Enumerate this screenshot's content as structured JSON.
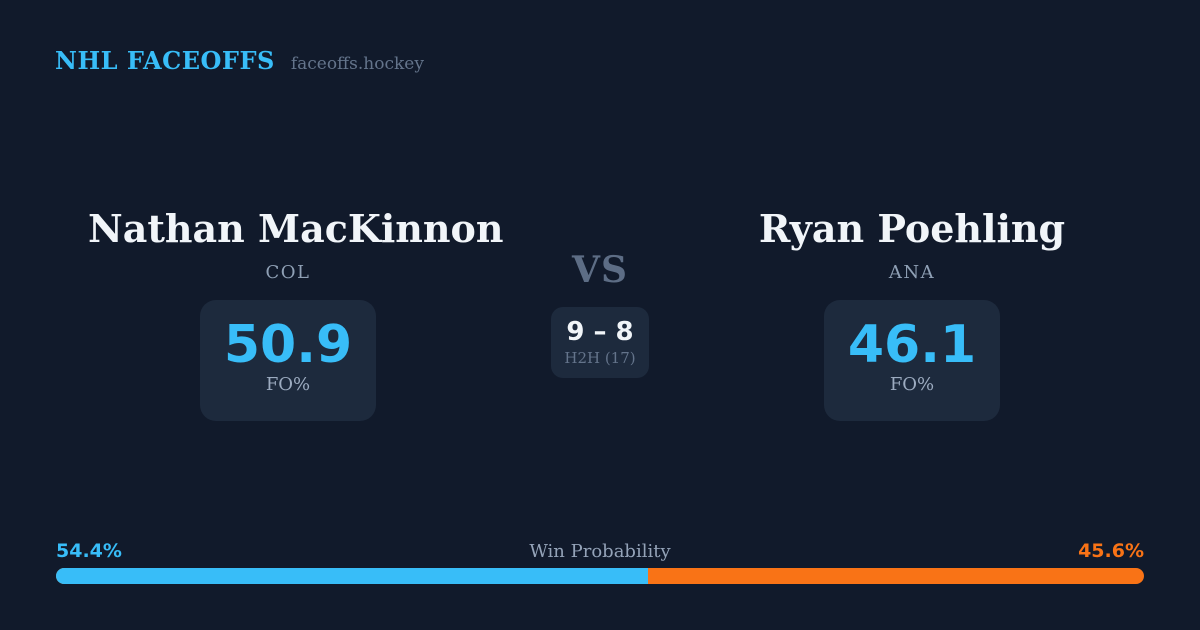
{
  "header": {
    "brand": "NHL FACEOFFS",
    "site": "faceoffs.hockey"
  },
  "matchup": {
    "vs_label": "VS",
    "h2h": {
      "score": "9 – 8",
      "label": "H2H (17)"
    },
    "players": [
      {
        "name": "Nathan MacKinnon",
        "team": "COL",
        "stat_value": "50.9",
        "stat_label": "FO%"
      },
      {
        "name": "Ryan Poehling",
        "team": "ANA",
        "stat_value": "46.1",
        "stat_label": "FO%"
      }
    ]
  },
  "win_probability": {
    "title": "Win Probability",
    "left_pct_label": "54.4%",
    "right_pct_label": "45.6%",
    "left_value": 54.4,
    "right_value": 45.6,
    "left_color": "#38bdf8",
    "right_color": "#f97316"
  },
  "theme": {
    "background": "#111a2b",
    "card_background": "#1d2a3d",
    "accent_blue": "#38bdf8",
    "accent_orange": "#f97316",
    "text_primary": "#f1f5f9",
    "text_muted": "#94a3b8"
  }
}
